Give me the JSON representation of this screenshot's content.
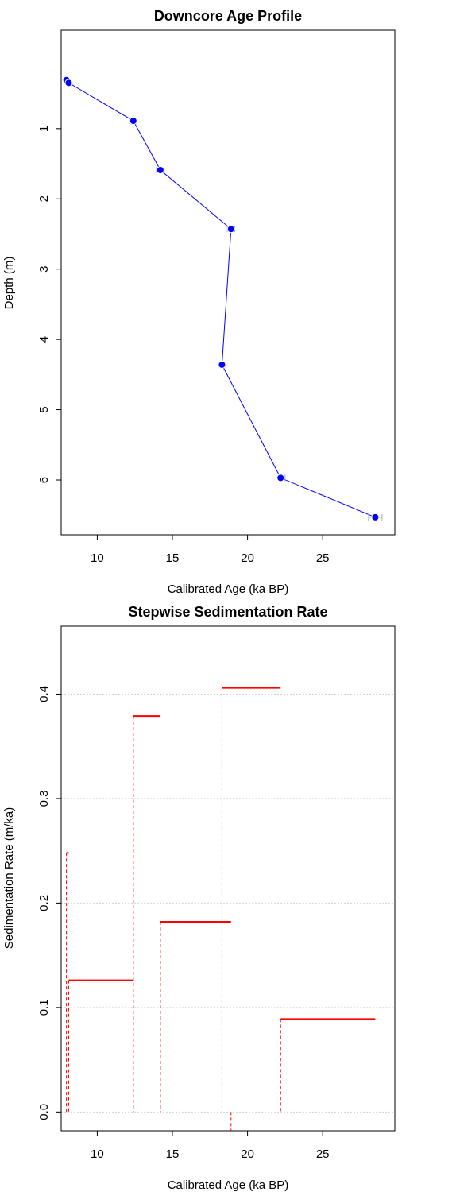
{
  "chart_data": [
    {
      "type": "line",
      "title": "Downcore Age Profile",
      "xlabel": "Calibrated Age (ka BP)",
      "ylabel": "Depth (m)",
      "xlim": [
        7.6,
        29.8
      ],
      "ylim": [
        6.78,
        -0.4
      ],
      "y_reversed": true,
      "x_ticks": [
        10,
        15,
        20,
        25
      ],
      "y_ticks": [
        1,
        2,
        3,
        4,
        5,
        6
      ],
      "grid": false,
      "line_color": "#0000ff",
      "point_color": "#0000ff",
      "errorbar_color": "#aaaaaa",
      "points": [
        {
          "age": 7.95,
          "depth": 0.31,
          "err": 0.1
        },
        {
          "age": 8.1,
          "depth": 0.35,
          "err": 0.1
        },
        {
          "age": 12.4,
          "depth": 0.89,
          "err": 0.2
        },
        {
          "age": 14.2,
          "depth": 1.59,
          "err": 0.25
        },
        {
          "age": 18.9,
          "depth": 2.43,
          "err": 0.25
        },
        {
          "age": 18.3,
          "depth": 4.36,
          "err": 0.25
        },
        {
          "age": 22.2,
          "depth": 5.97,
          "err": 0.3
        },
        {
          "age": 28.5,
          "depth": 6.53,
          "err": 0.45
        }
      ]
    },
    {
      "type": "line",
      "title": "Stepwise Sedimentation Rate",
      "xlabel": "Calibrated Age (ka BP)",
      "ylabel": "Sedimentation Rate (m/ka)",
      "xlim": [
        7.6,
        29.8
      ],
      "ylim": [
        -0.018,
        0.465
      ],
      "x_ticks": [
        10,
        15,
        20,
        25
      ],
      "y_ticks": [
        0.0,
        0.1,
        0.2,
        0.3,
        0.4
      ],
      "y_tick_labels": [
        "0.0",
        "0.1",
        "0.2",
        "0.3",
        "0.4"
      ],
      "grid": true,
      "step_color": "#ff0000",
      "steps": [
        {
          "x0": 7.95,
          "x1": 8.1,
          "rate": 0.248
        },
        {
          "x0": 8.1,
          "x1": 12.4,
          "rate": 0.126
        },
        {
          "x0": 12.4,
          "x1": 14.2,
          "rate": 0.379
        },
        {
          "x0": 14.2,
          "x1": 18.9,
          "rate": 0.182
        },
        {
          "x0": 18.3,
          "x1": 22.2,
          "rate": 0.406
        },
        {
          "x0": 22.2,
          "x1": 28.5,
          "rate": 0.089
        }
      ],
      "drops": [
        {
          "x": 7.95,
          "top": 0.248
        },
        {
          "x": 8.1,
          "top": 0.126
        },
        {
          "x": 12.4,
          "top": 0.379
        },
        {
          "x": 14.2,
          "top": 0.182
        },
        {
          "x": 18.3,
          "top": 0.406
        },
        {
          "x": 18.9,
          "top": -0.018
        },
        {
          "x": 22.2,
          "top": 0.089
        }
      ]
    }
  ]
}
